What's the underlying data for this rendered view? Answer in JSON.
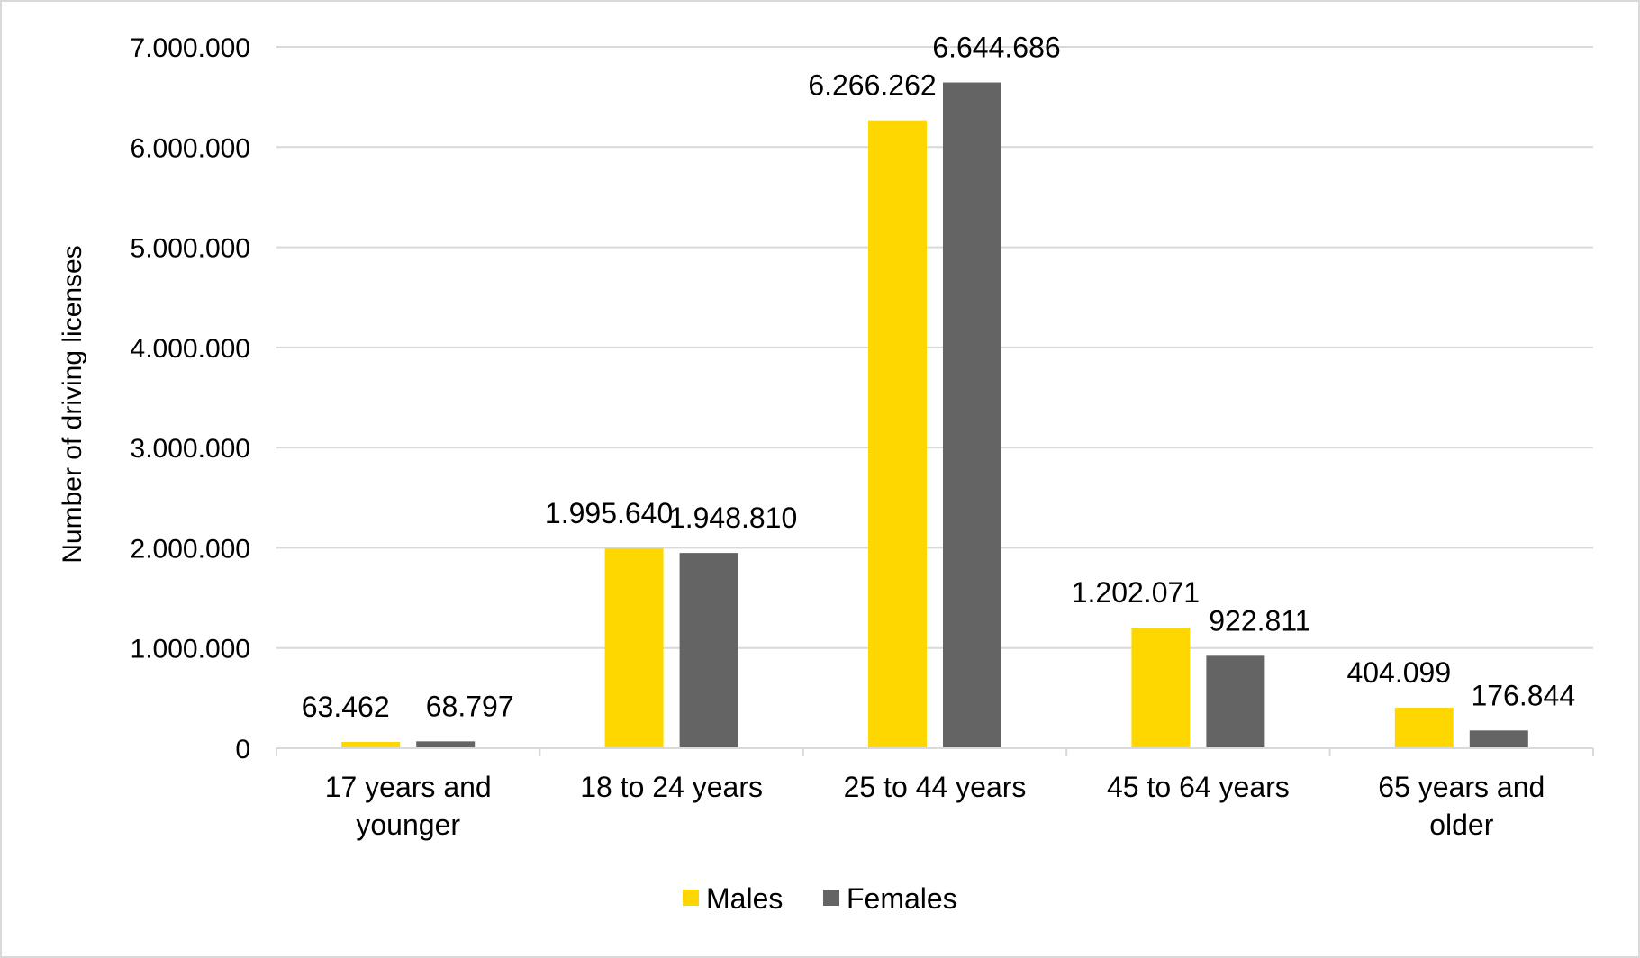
{
  "chart_data": {
    "type": "bar",
    "title": "",
    "xlabel": "",
    "ylabel": "Number of driving licenses",
    "ylim": [
      0,
      7000000
    ],
    "y_ticks": [
      {
        "value": 0,
        "label": "0"
      },
      {
        "value": 1000000,
        "label": "1.000.000"
      },
      {
        "value": 2000000,
        "label": "2.000.000"
      },
      {
        "value": 3000000,
        "label": "3.000.000"
      },
      {
        "value": 4000000,
        "label": "4.000.000"
      },
      {
        "value": 5000000,
        "label": "5.000.000"
      },
      {
        "value": 6000000,
        "label": "6.000.000"
      },
      {
        "value": 7000000,
        "label": "7.000.000"
      }
    ],
    "categories": [
      [
        "17 years and",
        "younger"
      ],
      [
        "18 to 24 years"
      ],
      [
        "25 to 44 years"
      ],
      [
        "45 to 64 years"
      ],
      [
        "65 years and",
        "older"
      ]
    ],
    "series": [
      {
        "name": "Males",
        "color": "#ffd700",
        "values": [
          63462,
          1995640,
          6266262,
          1202071,
          404099
        ],
        "labels": [
          "63.462",
          "1.995.640",
          "6.266.262",
          "1.202.071",
          "404.099"
        ]
      },
      {
        "name": "Females",
        "color": "#646464",
        "values": [
          68797,
          1948810,
          6644686,
          922811,
          176844
        ],
        "labels": [
          "68.797",
          "1.948.810",
          "6.644.686",
          "922.811",
          "176.844"
        ]
      }
    ],
    "grid": true,
    "legend": "bottom"
  }
}
